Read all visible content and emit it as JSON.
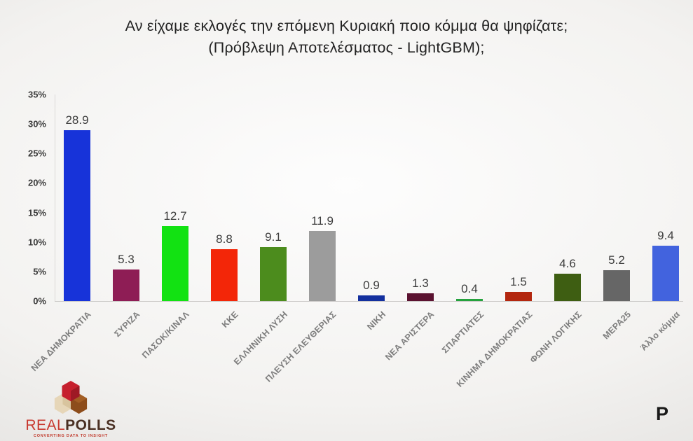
{
  "title": {
    "line1": "Αν είχαμε εκλογές την επόμενη Κυριακή ποιο κόμμα θα ψηφίζατε;",
    "line2": "(Πρόβλεψη Αποτελέσματος - LightGBM);"
  },
  "chart_data": {
    "type": "bar",
    "title": "Αν είχαμε εκλογές την επόμενη Κυριακή ποιο κόμμα θα ψηφίζατε; (Πρόβλεψη Αποτελέσματος - LightGBM);",
    "categories": [
      "ΝΕΑ ΔΗΜΟΚΡΑΤΙΑ",
      "ΣΥΡΙΖΑ",
      "ΠΑΣΟΚ/ΚΙΝΑΛ",
      "ΚΚΕ",
      "ΕΛΛΗΝΙΚΗ ΛΥΣΗ",
      "ΠΛΕΥΣΗ ΕΛΕΥΘΕΡΙΑΣ",
      "ΝΙΚΗ",
      "ΝΕΑ ΑΡΙΣΤΕΡΑ",
      "ΣΠΑΡΤΙΑΤΕΣ",
      "ΚΙΝΗΜΑ ΔΗΜΟΚΡΑΤΙΑΣ",
      "ΦΩΝΗ ΛΟΓΙΚΗΣ",
      "ΜΕΡΑ25",
      "Άλλο κόμμα"
    ],
    "values": [
      28.9,
      5.3,
      12.7,
      8.8,
      9.1,
      11.9,
      0.9,
      1.3,
      0.4,
      1.5,
      4.6,
      5.2,
      9.4
    ],
    "value_labels": [
      "28.9",
      "5.3",
      "12.7",
      "8.8",
      "9.1",
      "11.9",
      "0.9",
      "1.3",
      "0.4",
      "1.5",
      "4.6",
      "5.2",
      "9.4"
    ],
    "bar_colors": [
      "#1733d9",
      "#8e1d55",
      "#12e212",
      "#f32608",
      "#4c8c1d",
      "#9c9c9c",
      "#13309e",
      "#5b1230",
      "#25a23e",
      "#b3270f",
      "#3e5e12",
      "#666666",
      "#4263de"
    ],
    "y_ticks": [
      "0%",
      "5%",
      "10%",
      "15%",
      "20%",
      "25%",
      "30%",
      "35%"
    ],
    "ylim": [
      0,
      35
    ],
    "grid": false,
    "legend": "none",
    "xlabel": "",
    "ylabel": ""
  },
  "footer": {
    "realpolls_logo": {
      "word_real": "REAL",
      "word_polls": "POLLS",
      "tagline": "CONVERTING DATA TO INSIGHT",
      "cube_red": "#c6202e",
      "cube_red_dark": "#9e1a25",
      "cube_tan": "#e6d6b8",
      "cube_tan_dark": "#cdb astro",
      "cube_tan_shade": "#cdb astro2"
    },
    "protagon_logo": {
      "letter": "P",
      "dot_color": "#e01212"
    }
  }
}
